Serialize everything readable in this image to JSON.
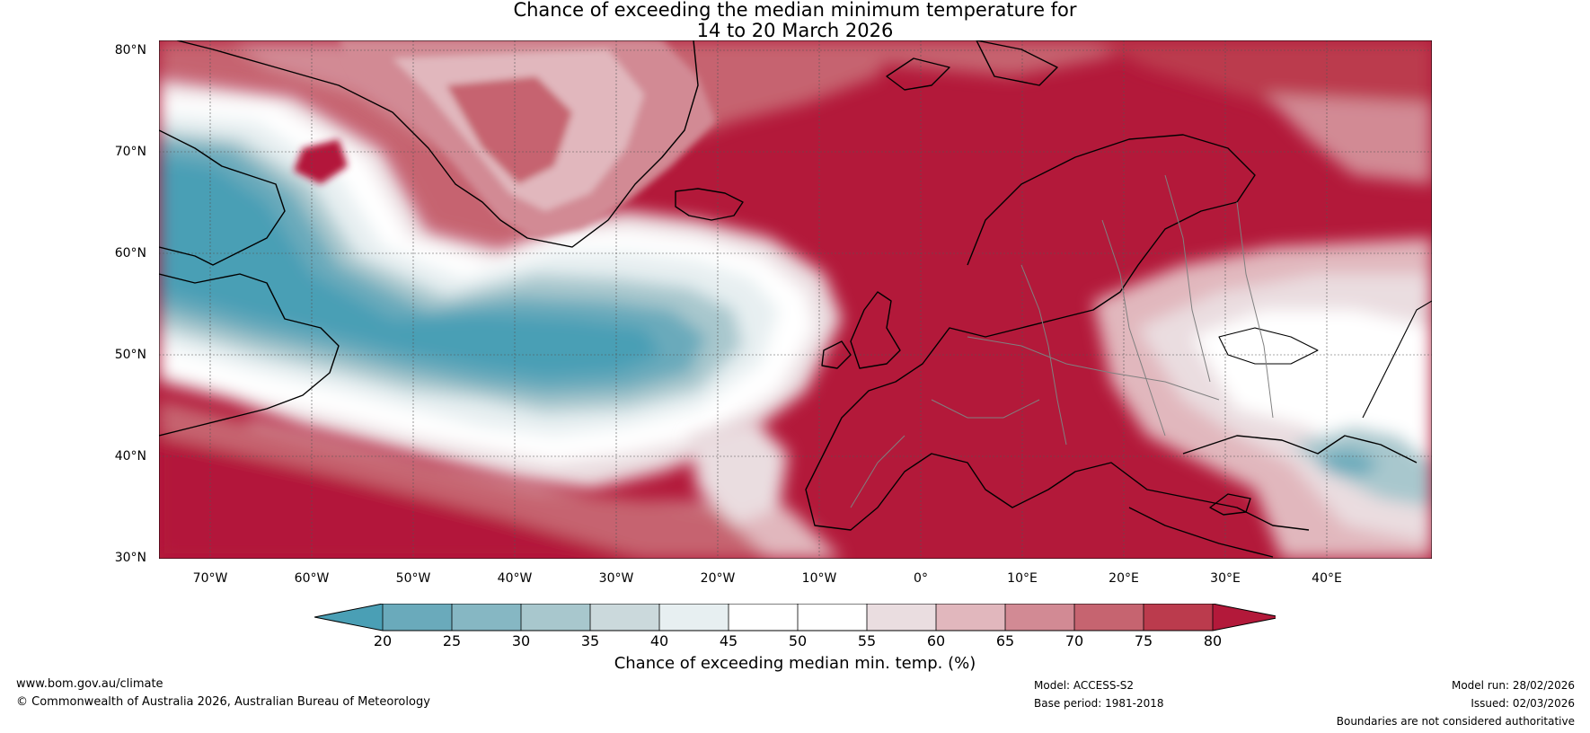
{
  "title": {
    "line1": "Chance of exceeding the median minimum temperature for",
    "line2": "14 to 20 March 2026"
  },
  "map": {
    "latitude_labels": [
      "80°N",
      "70°N",
      "60°N",
      "50°N",
      "40°N",
      "30°N"
    ],
    "longitude_labels": [
      "70°W",
      "60°W",
      "50°W",
      "40°W",
      "30°W",
      "20°W",
      "10°W",
      "0°",
      "10°E",
      "20°E",
      "30°E",
      "40°E"
    ],
    "extent": {
      "lon_min": -75,
      "lon_max": 50,
      "lat_min": 30,
      "lat_max": 81
    }
  },
  "colorbar": {
    "ticks": [
      "20",
      "25",
      "30",
      "35",
      "40",
      "45",
      "50",
      "55",
      "60",
      "65",
      "70",
      "75",
      "80"
    ],
    "colors": [
      "#4a9fb5",
      "#6aaabb",
      "#86b7c3",
      "#a8c7cd",
      "#cbd9dc",
      "#e7eff1",
      "#ffffff",
      "#ffffff",
      "#eadde0",
      "#e1b7bd",
      "#d28a94",
      "#c66470",
      "#bb3b4d",
      "#b3193a"
    ],
    "label": "Chance of exceeding median min. temp. (%)"
  },
  "footer": {
    "website": "www.bom.gov.au/climate",
    "copyright": "© Commonwealth of Australia 2026, Australian Bureau of Meteorology",
    "model": "Model: ACCESS-S2",
    "base_period": "Base period: 1981-2018",
    "model_run": "Model run: 28/02/2026",
    "issued": "Issued: 02/03/2026",
    "disclaimer": "Boundaries are not considered authoritative"
  }
}
